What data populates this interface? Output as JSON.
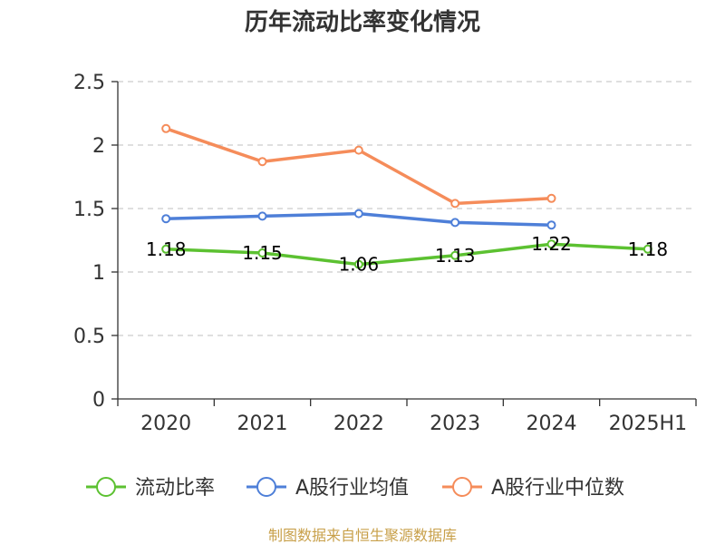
{
  "chart_data": {
    "type": "line",
    "title": "历年流动比率变化情况",
    "categories": [
      "2020",
      "2021",
      "2022",
      "2023",
      "2024",
      "2025H1"
    ],
    "ylim": [
      0,
      2.5
    ],
    "yticks": [
      "0",
      "0.5",
      "1",
      "1.5",
      "2",
      "2.5"
    ],
    "grid": true,
    "legend_position": "bottom",
    "series": [
      {
        "name": "流动比率",
        "color": "#5cc131",
        "values": [
          1.18,
          1.15,
          1.06,
          1.13,
          1.22,
          1.18
        ],
        "labels": [
          "1.18",
          "1.15",
          "1.06",
          "1.13",
          "1.22",
          "1.18"
        ]
      },
      {
        "name": "A股行业均值",
        "color": "#4e7fd8",
        "values": [
          1.42,
          1.44,
          1.46,
          1.39,
          1.37,
          null
        ]
      },
      {
        "name": "A股行业中位数",
        "color": "#f58c5a",
        "values": [
          2.13,
          1.87,
          1.96,
          1.54,
          1.58,
          null
        ]
      }
    ]
  },
  "footer": "制图数据来自恒生聚源数据库"
}
